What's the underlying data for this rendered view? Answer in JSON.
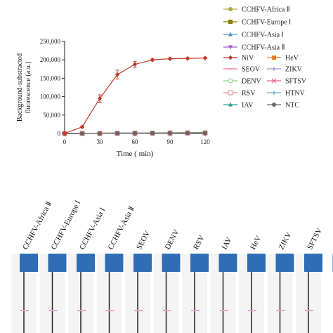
{
  "chart_data": {
    "type": "line",
    "xlabel": "Time ( min)",
    "ylabel": "Background-substracted fluorescence (a.u.)",
    "x": [
      0,
      15,
      30,
      45,
      60,
      75,
      90,
      105,
      120
    ],
    "xticks": [
      0,
      30,
      60,
      90,
      120
    ],
    "yticks": [
      0,
      50000,
      100000,
      150000,
      200000,
      250000
    ],
    "ytick_labels": [
      "0",
      "50,000",
      "100,000",
      "150,000",
      "200,000",
      "250,000"
    ],
    "xlim": [
      0,
      120
    ],
    "ylim": [
      0,
      250000
    ],
    "legend_placement": "right",
    "series": [
      {
        "name": "CCHFV-Africa Ⅱ",
        "color": "#b5a642",
        "marker": "circle",
        "values": [
          0,
          500,
          1000,
          1200,
          1500,
          1800,
          2000,
          2200,
          2500
        ]
      },
      {
        "name": "CCHFV-Europe Ⅰ",
        "color": "#8b7d00",
        "marker": "square",
        "values": [
          0,
          400,
          900,
          1100,
          1400,
          1700,
          1900,
          2100,
          2300
        ]
      },
      {
        "name": "CCHFV-Asia Ⅰ",
        "color": "#4a90d9",
        "marker": "triangle",
        "values": [
          0,
          300,
          700,
          900,
          1200,
          1400,
          1600,
          1800,
          2000
        ]
      },
      {
        "name": "CCHFV-Asia Ⅱ",
        "color": "#9b59d0",
        "marker": "triangle-down",
        "values": [
          0,
          200,
          600,
          800,
          1000,
          1200,
          1400,
          1600,
          1800
        ]
      },
      {
        "name": "NiV",
        "color": "#c0392b",
        "marker": "diamond",
        "values": [
          0,
          18000,
          95000,
          160000,
          188000,
          200000,
          203000,
          204000,
          205000
        ],
        "errors": [
          0,
          2000,
          10000,
          12000,
          8000,
          3000,
          2000,
          2000,
          2000
        ]
      },
      {
        "name": "SEOV",
        "color": "#e87ba0",
        "marker": "dash",
        "values": [
          0,
          200,
          500,
          700,
          900,
          1100,
          1300,
          1500,
          1700
        ]
      },
      {
        "name": "DENV",
        "color": "#7ed37e",
        "marker": "circle-open",
        "values": [
          0,
          150,
          450,
          650,
          850,
          1050,
          1250,
          1450,
          1650
        ]
      },
      {
        "name": "RSV",
        "color": "#e08a8a",
        "marker": "square-open",
        "values": [
          0,
          100,
          400,
          600,
          800,
          1000,
          1200,
          1400,
          1600
        ]
      },
      {
        "name": "IAV",
        "color": "#2aa198",
        "marker": "triangle",
        "values": [
          0,
          100,
          350,
          550,
          750,
          950,
          1150,
          1350,
          1550
        ]
      },
      {
        "name": "HeV",
        "color": "#e67e22",
        "marker": "square",
        "values": [
          0,
          100,
          300,
          500,
          700,
          900,
          1100,
          1300,
          1500
        ]
      },
      {
        "name": "ZIKV",
        "color": "#9b9bd0",
        "marker": "cross",
        "values": [
          0,
          80,
          250,
          450,
          650,
          850,
          1050,
          1250,
          1450
        ]
      },
      {
        "name": "SFTSV",
        "color": "#e06090",
        "marker": "x",
        "values": [
          0,
          80,
          200,
          400,
          600,
          800,
          1000,
          1200,
          1400
        ]
      },
      {
        "name": "HTNV",
        "color": "#6fa8dc",
        "marker": "cross",
        "values": [
          0,
          60,
          150,
          350,
          550,
          750,
          950,
          1150,
          1350
        ]
      },
      {
        "name": "NTC",
        "color": "#666666",
        "marker": "circle",
        "values": [
          0,
          50,
          100,
          300,
          500,
          700,
          900,
          1100,
          1300
        ]
      }
    ]
  },
  "strips": {
    "labels": [
      "CCHFV-Africa Ⅱ",
      "CCHFV-Europe Ⅰ",
      "CCHFV-Asia Ⅰ",
      "CCHFV-Asia Ⅱ",
      "SEOV",
      "DENV",
      "RSV",
      "IAV",
      "HeV",
      "ZIKV",
      "SFTSV"
    ],
    "pad_color": "#2f6db5",
    "band_color": "#e0a8c8"
  }
}
